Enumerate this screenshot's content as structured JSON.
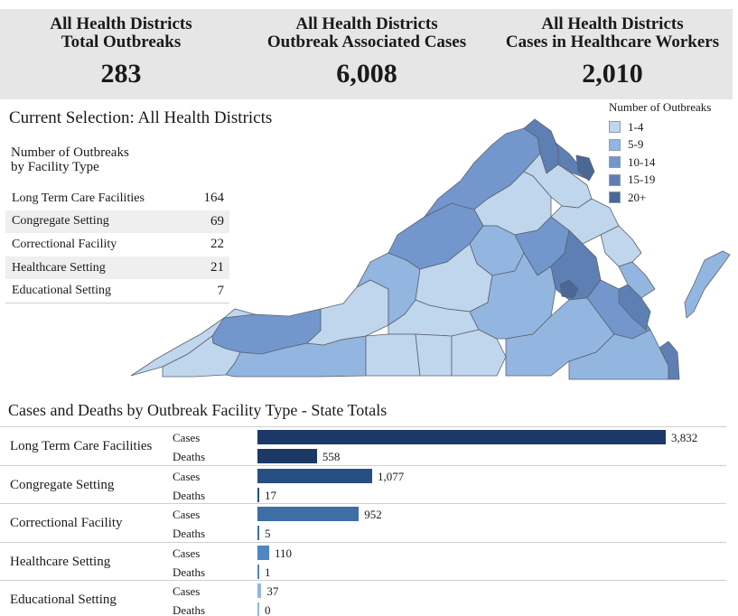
{
  "kpis": [
    {
      "title_line1": "All Health Districts",
      "title_line2": "Total Outbreaks",
      "value": "283"
    },
    {
      "title_line1": "All Health Districts",
      "title_line2": "Outbreak Associated Cases",
      "value": "6,008"
    },
    {
      "title_line1": "All Health Districts",
      "title_line2": "Cases in Healthcare Workers",
      "value": "2,010"
    }
  ],
  "current_selection": "Current Selection: All Health Districts",
  "facility_table": {
    "title_line1": "Number of Outbreaks",
    "title_line2": "by Facility Type",
    "rows": [
      {
        "label": "Long Term Care Facilities",
        "count": "164"
      },
      {
        "label": "Congregate Setting",
        "count": "69"
      },
      {
        "label": "Correctional Facility",
        "count": "22"
      },
      {
        "label": "Healthcare Setting",
        "count": "21"
      },
      {
        "label": "Educational Setting",
        "count": "7"
      }
    ]
  },
  "legend": {
    "title": "Number of Outbreaks",
    "items": [
      {
        "label": "1-4",
        "color": "#bfd6ec"
      },
      {
        "label": "5-9",
        "color": "#93b6e0"
      },
      {
        "label": "10-14",
        "color": "#7397cc"
      },
      {
        "label": "15-19",
        "color": "#5e7fb4"
      },
      {
        "label": "20+",
        "color": "#4a6896"
      }
    ]
  },
  "chart_data": {
    "type": "bar",
    "title": "Cases and Deaths by Outbreak Facility Type - State Totals",
    "categories": [
      "Long Term Care Facilities",
      "Congregate Setting",
      "Correctional Facility",
      "Healthcare Setting",
      "Educational Setting"
    ],
    "series": [
      {
        "name": "Cases",
        "values": [
          3832,
          1077,
          952,
          110,
          37
        ],
        "labels": [
          "3,832",
          "1,077",
          "952",
          "110",
          "37"
        ]
      },
      {
        "name": "Deaths",
        "values": [
          558,
          17,
          5,
          1,
          0
        ],
        "labels": [
          "558",
          "17",
          "5",
          "1",
          "0"
        ]
      }
    ],
    "colors": [
      "#1c3866",
      "#284f82",
      "#3d6ea5",
      "#4f86c4",
      "#93b6e0"
    ]
  }
}
